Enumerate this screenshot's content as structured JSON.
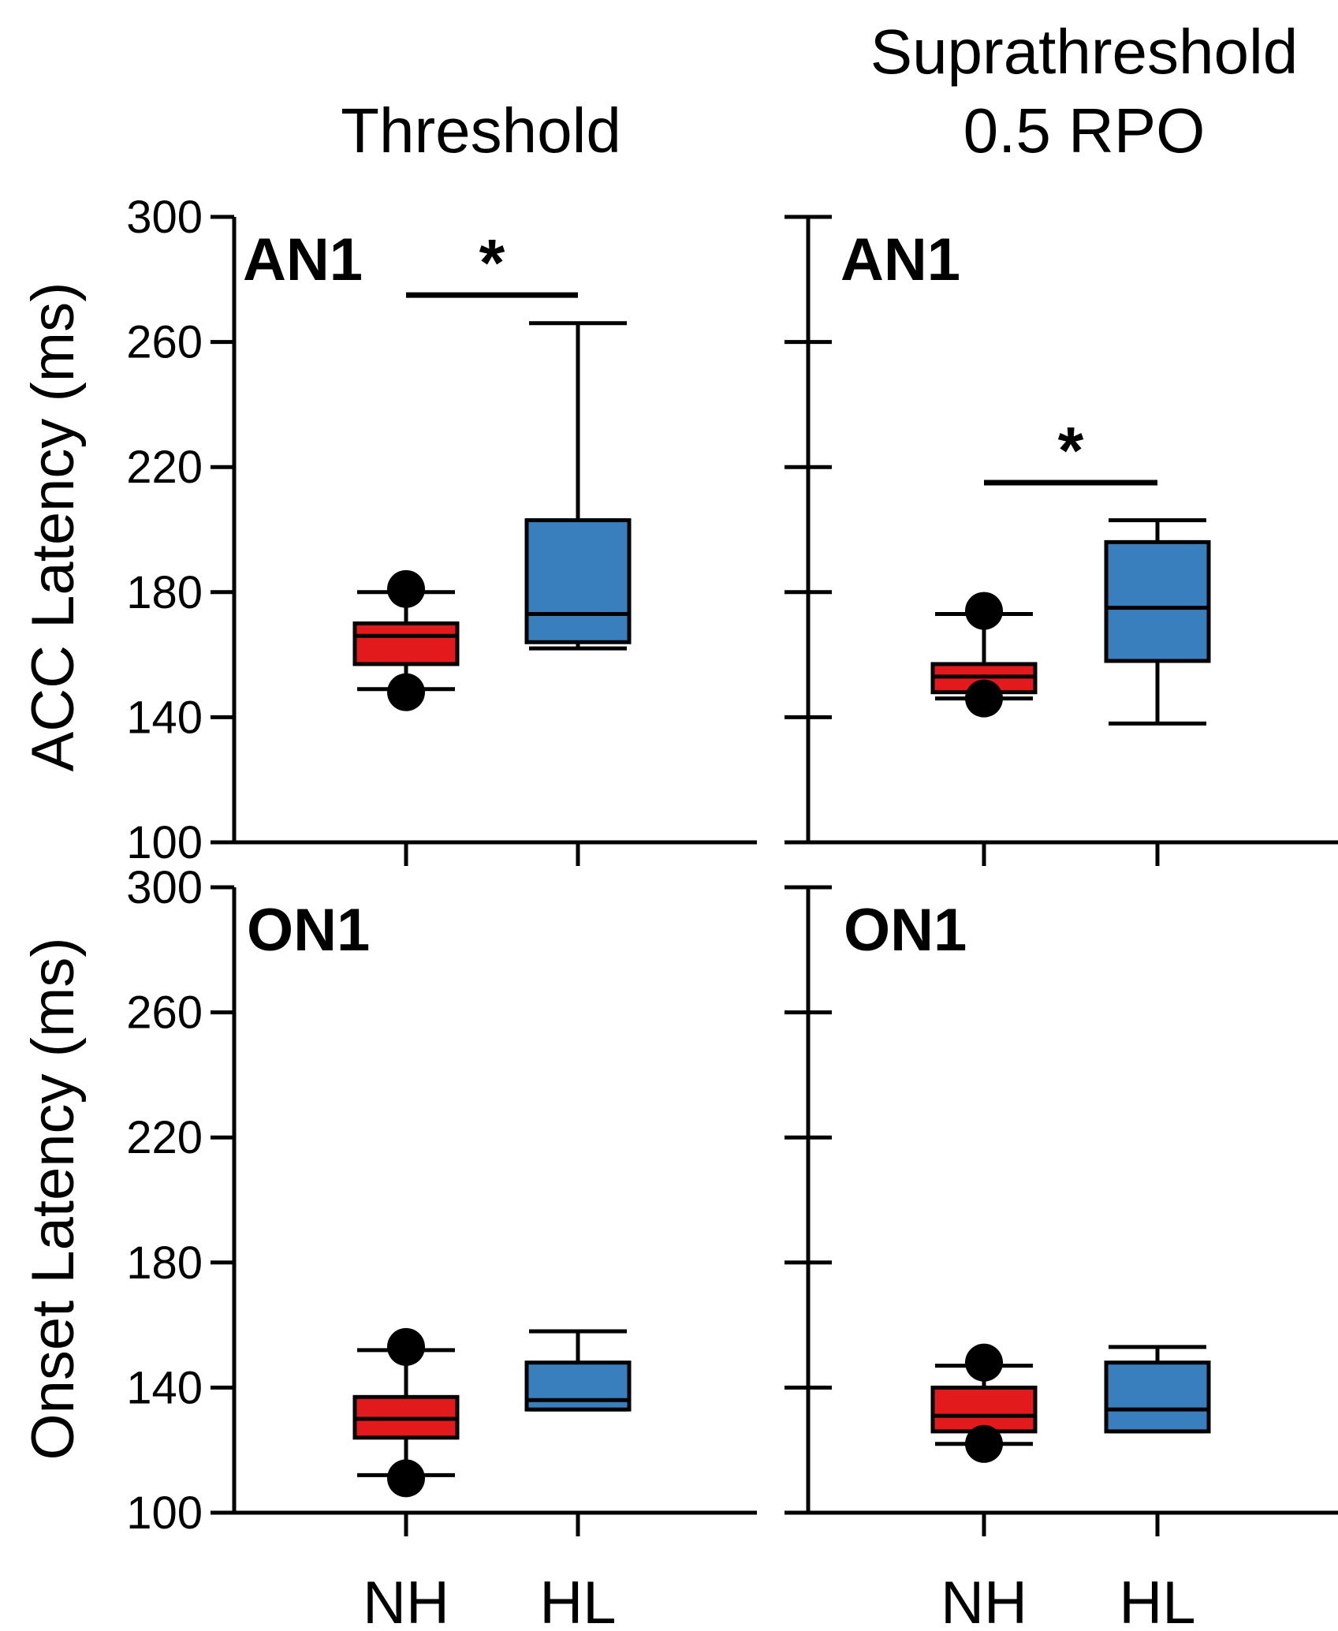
{
  "column_titles": {
    "left": "Threshold",
    "right_line1": "Suprathreshold",
    "right_line2": "0.5 RPO"
  },
  "y_axis_labels": {
    "top": "ACC Latency (ms)",
    "bottom": "Onset Latency (ms)"
  },
  "x_categories": [
    "NH",
    "HL"
  ],
  "colors": {
    "NH": "#e31a1c",
    "HL": "#3a7fbd"
  },
  "chart_data": [
    {
      "type": "box",
      "panel": "top-left",
      "label": "AN1",
      "ylim": [
        100,
        300
      ],
      "ticks": [
        100,
        140,
        180,
        220,
        260,
        300
      ],
      "categories": [
        "NH",
        "HL"
      ],
      "series": [
        {
          "name": "NH",
          "whisker_low": 149,
          "q1": 157,
          "median": 166,
          "q3": 170,
          "whisker_high": 180,
          "outliers": [
            148,
            181
          ]
        },
        {
          "name": "HL",
          "whisker_low": 162,
          "q1": 164,
          "median": 173,
          "q3": 203,
          "whisker_high": 266,
          "outliers": []
        }
      ],
      "significance": {
        "from": "NH",
        "to": "HL",
        "y": 275,
        "symbol": "*"
      }
    },
    {
      "type": "box",
      "panel": "top-right",
      "label": "AN1",
      "ylim": [
        100,
        300
      ],
      "ticks": [
        100,
        140,
        180,
        220,
        260,
        300
      ],
      "categories": [
        "NH",
        "HL"
      ],
      "series": [
        {
          "name": "NH",
          "whisker_low": 146,
          "q1": 148,
          "median": 153,
          "q3": 157,
          "whisker_high": 173,
          "outliers": [
            146,
            174
          ]
        },
        {
          "name": "HL",
          "whisker_low": 138,
          "q1": 158,
          "median": 175,
          "q3": 196,
          "whisker_high": 203,
          "outliers": []
        }
      ],
      "significance": {
        "from": "NH",
        "to": "HL",
        "y": 215,
        "symbol": "*"
      }
    },
    {
      "type": "box",
      "panel": "bottom-left",
      "label": "ON1",
      "ylim": [
        100,
        300
      ],
      "ticks": [
        100,
        140,
        180,
        220,
        260,
        300
      ],
      "categories": [
        "NH",
        "HL"
      ],
      "series": [
        {
          "name": "NH",
          "whisker_low": 112,
          "q1": 124,
          "median": 130,
          "q3": 137,
          "whisker_high": 152,
          "outliers": [
            111,
            153
          ]
        },
        {
          "name": "HL",
          "whisker_low": 133,
          "q1": 133,
          "median": 136,
          "q3": 148,
          "whisker_high": 158,
          "outliers": []
        }
      ]
    },
    {
      "type": "box",
      "panel": "bottom-right",
      "label": "ON1",
      "ylim": [
        100,
        300
      ],
      "ticks": [
        100,
        140,
        180,
        220,
        260,
        300
      ],
      "categories": [
        "NH",
        "HL"
      ],
      "series": [
        {
          "name": "NH",
          "whisker_low": 122,
          "q1": 126,
          "median": 131,
          "q3": 140,
          "whisker_high": 147,
          "outliers": [
            122,
            148
          ]
        },
        {
          "name": "HL",
          "whisker_low": 126,
          "q1": 126,
          "median": 133,
          "q3": 148,
          "whisker_high": 153,
          "outliers": []
        }
      ]
    }
  ]
}
